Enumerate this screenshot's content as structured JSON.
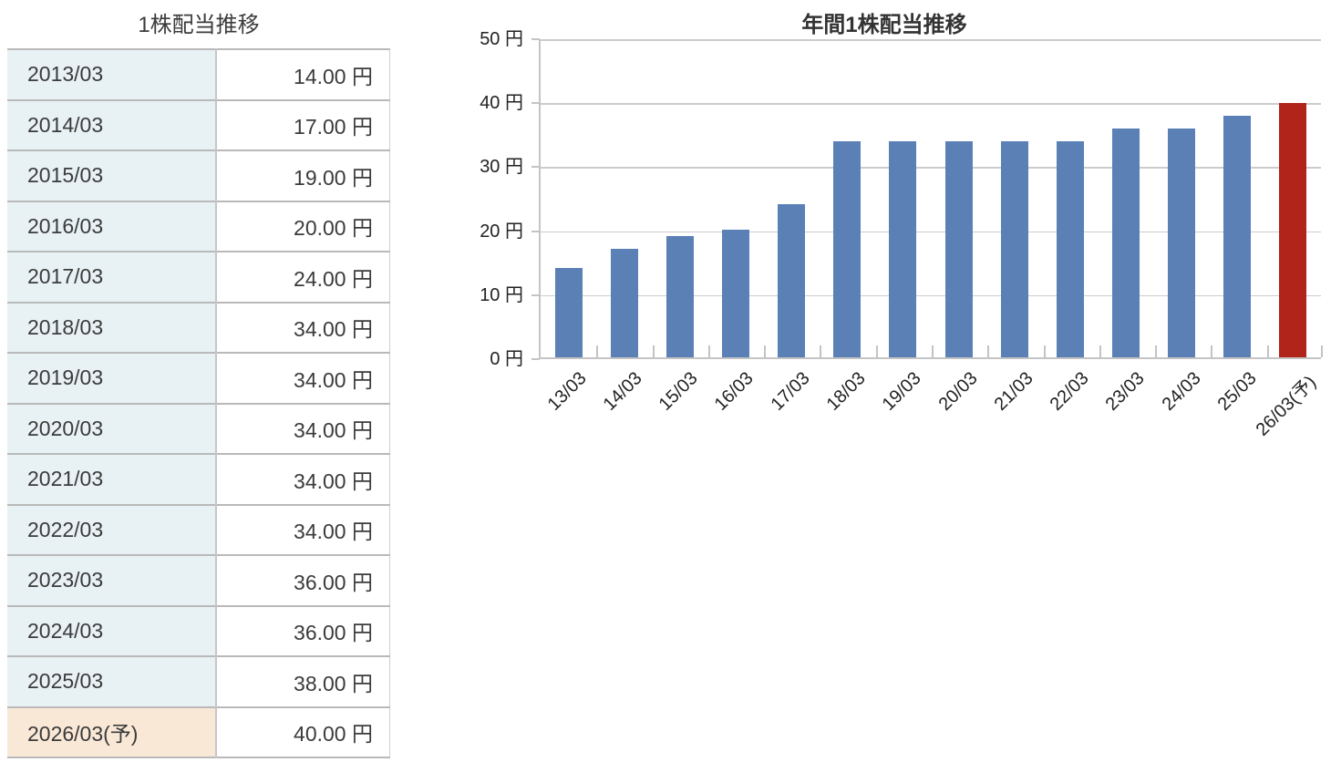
{
  "colors": {
    "bar_blue": "#5a80b6",
    "bar_red": "#b0241a",
    "cell_blue": "#e8f2f5",
    "cell_peach": "#fae8d7",
    "grid_line": "#cccccc",
    "axis_line": "#c4c4c4",
    "text": "#3b3b3b"
  },
  "table": {
    "title": "1株配当推移",
    "rows": [
      {
        "period": "2013/03",
        "value": "14.00 円",
        "forecast": false
      },
      {
        "period": "2014/03",
        "value": "17.00 円",
        "forecast": false
      },
      {
        "period": "2015/03",
        "value": "19.00 円",
        "forecast": false
      },
      {
        "period": "2016/03",
        "value": "20.00 円",
        "forecast": false
      },
      {
        "period": "2017/03",
        "value": "24.00 円",
        "forecast": false
      },
      {
        "period": "2018/03",
        "value": "34.00 円",
        "forecast": false
      },
      {
        "period": "2019/03",
        "value": "34.00 円",
        "forecast": false
      },
      {
        "period": "2020/03",
        "value": "34.00 円",
        "forecast": false
      },
      {
        "period": "2021/03",
        "value": "34.00 円",
        "forecast": false
      },
      {
        "period": "2022/03",
        "value": "34.00 円",
        "forecast": false
      },
      {
        "period": "2023/03",
        "value": "36.00 円",
        "forecast": false
      },
      {
        "period": "2024/03",
        "value": "36.00 円",
        "forecast": false
      },
      {
        "period": "2025/03",
        "value": "38.00 円",
        "forecast": false
      },
      {
        "period": "2026/03(予)",
        "value": "40.00 円",
        "forecast": true
      }
    ]
  },
  "chart": {
    "title": "年間1株配当推移",
    "y_tick_labels": [
      "50 円",
      "40 円",
      "30 円",
      "20 円",
      "10 円",
      "0 円"
    ]
  },
  "chart_data": {
    "type": "bar",
    "title": "年間1株配当推移",
    "categories": [
      "13/03",
      "14/03",
      "15/03",
      "16/03",
      "17/03",
      "18/03",
      "19/03",
      "20/03",
      "21/03",
      "22/03",
      "23/03",
      "24/03",
      "25/03",
      "26/03(予)"
    ],
    "values": [
      14,
      17,
      19,
      20,
      24,
      34,
      34,
      34,
      34,
      34,
      36,
      36,
      38,
      40
    ],
    "unit": "円",
    "xlabel": "",
    "ylabel": "円",
    "ylim": [
      0,
      50
    ],
    "y_tick_interval": 10,
    "grid": true,
    "legend_position": "none",
    "bar_color": "#5a80b6",
    "highlight_last_bar": true,
    "highlight_color": "#b0241a"
  }
}
